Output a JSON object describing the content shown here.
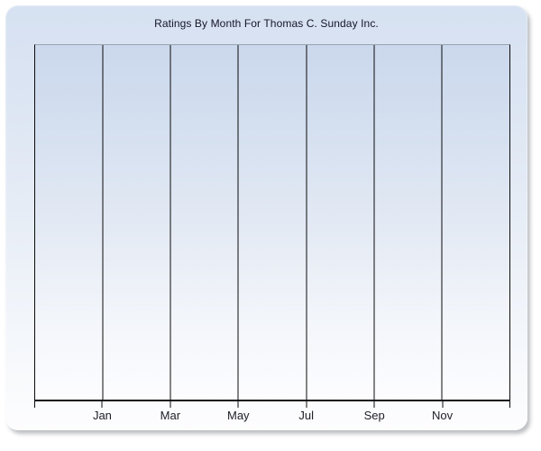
{
  "chart": {
    "title": "Ratings By Month For Thomas C. Sunday Inc.",
    "colors": {
      "title_text": "#15152a",
      "axis_label_text": "#20202a",
      "gridline": "#0b0b0b",
      "axis_line": "#141414",
      "plot_top_border": "#99a1ae",
      "panel_gradient_top": "#d6e1f1",
      "panel_gradient_bottom": "#fdfdfe",
      "plot_gradient_top": "#cbd8ec",
      "plot_gradient_bottom": "#fdfdff",
      "page_background": "#ffffff"
    }
  },
  "chart_data": {
    "type": "line",
    "title": "Ratings By Month For Thomas C. Sunday Inc.",
    "xlabel": "",
    "ylabel": "",
    "x_tick_labels": [
      "Jan",
      "Mar",
      "May",
      "Jul",
      "Sep",
      "Nov"
    ],
    "gridline_count": 8,
    "label_gridline_indexes": [
      1,
      2,
      3,
      4,
      5,
      6
    ],
    "series": [],
    "y_axis_tick_labels": [],
    "grid": "vertical gridlines only, black",
    "legend": "none",
    "plot_state": "empty - no data points rendered"
  }
}
